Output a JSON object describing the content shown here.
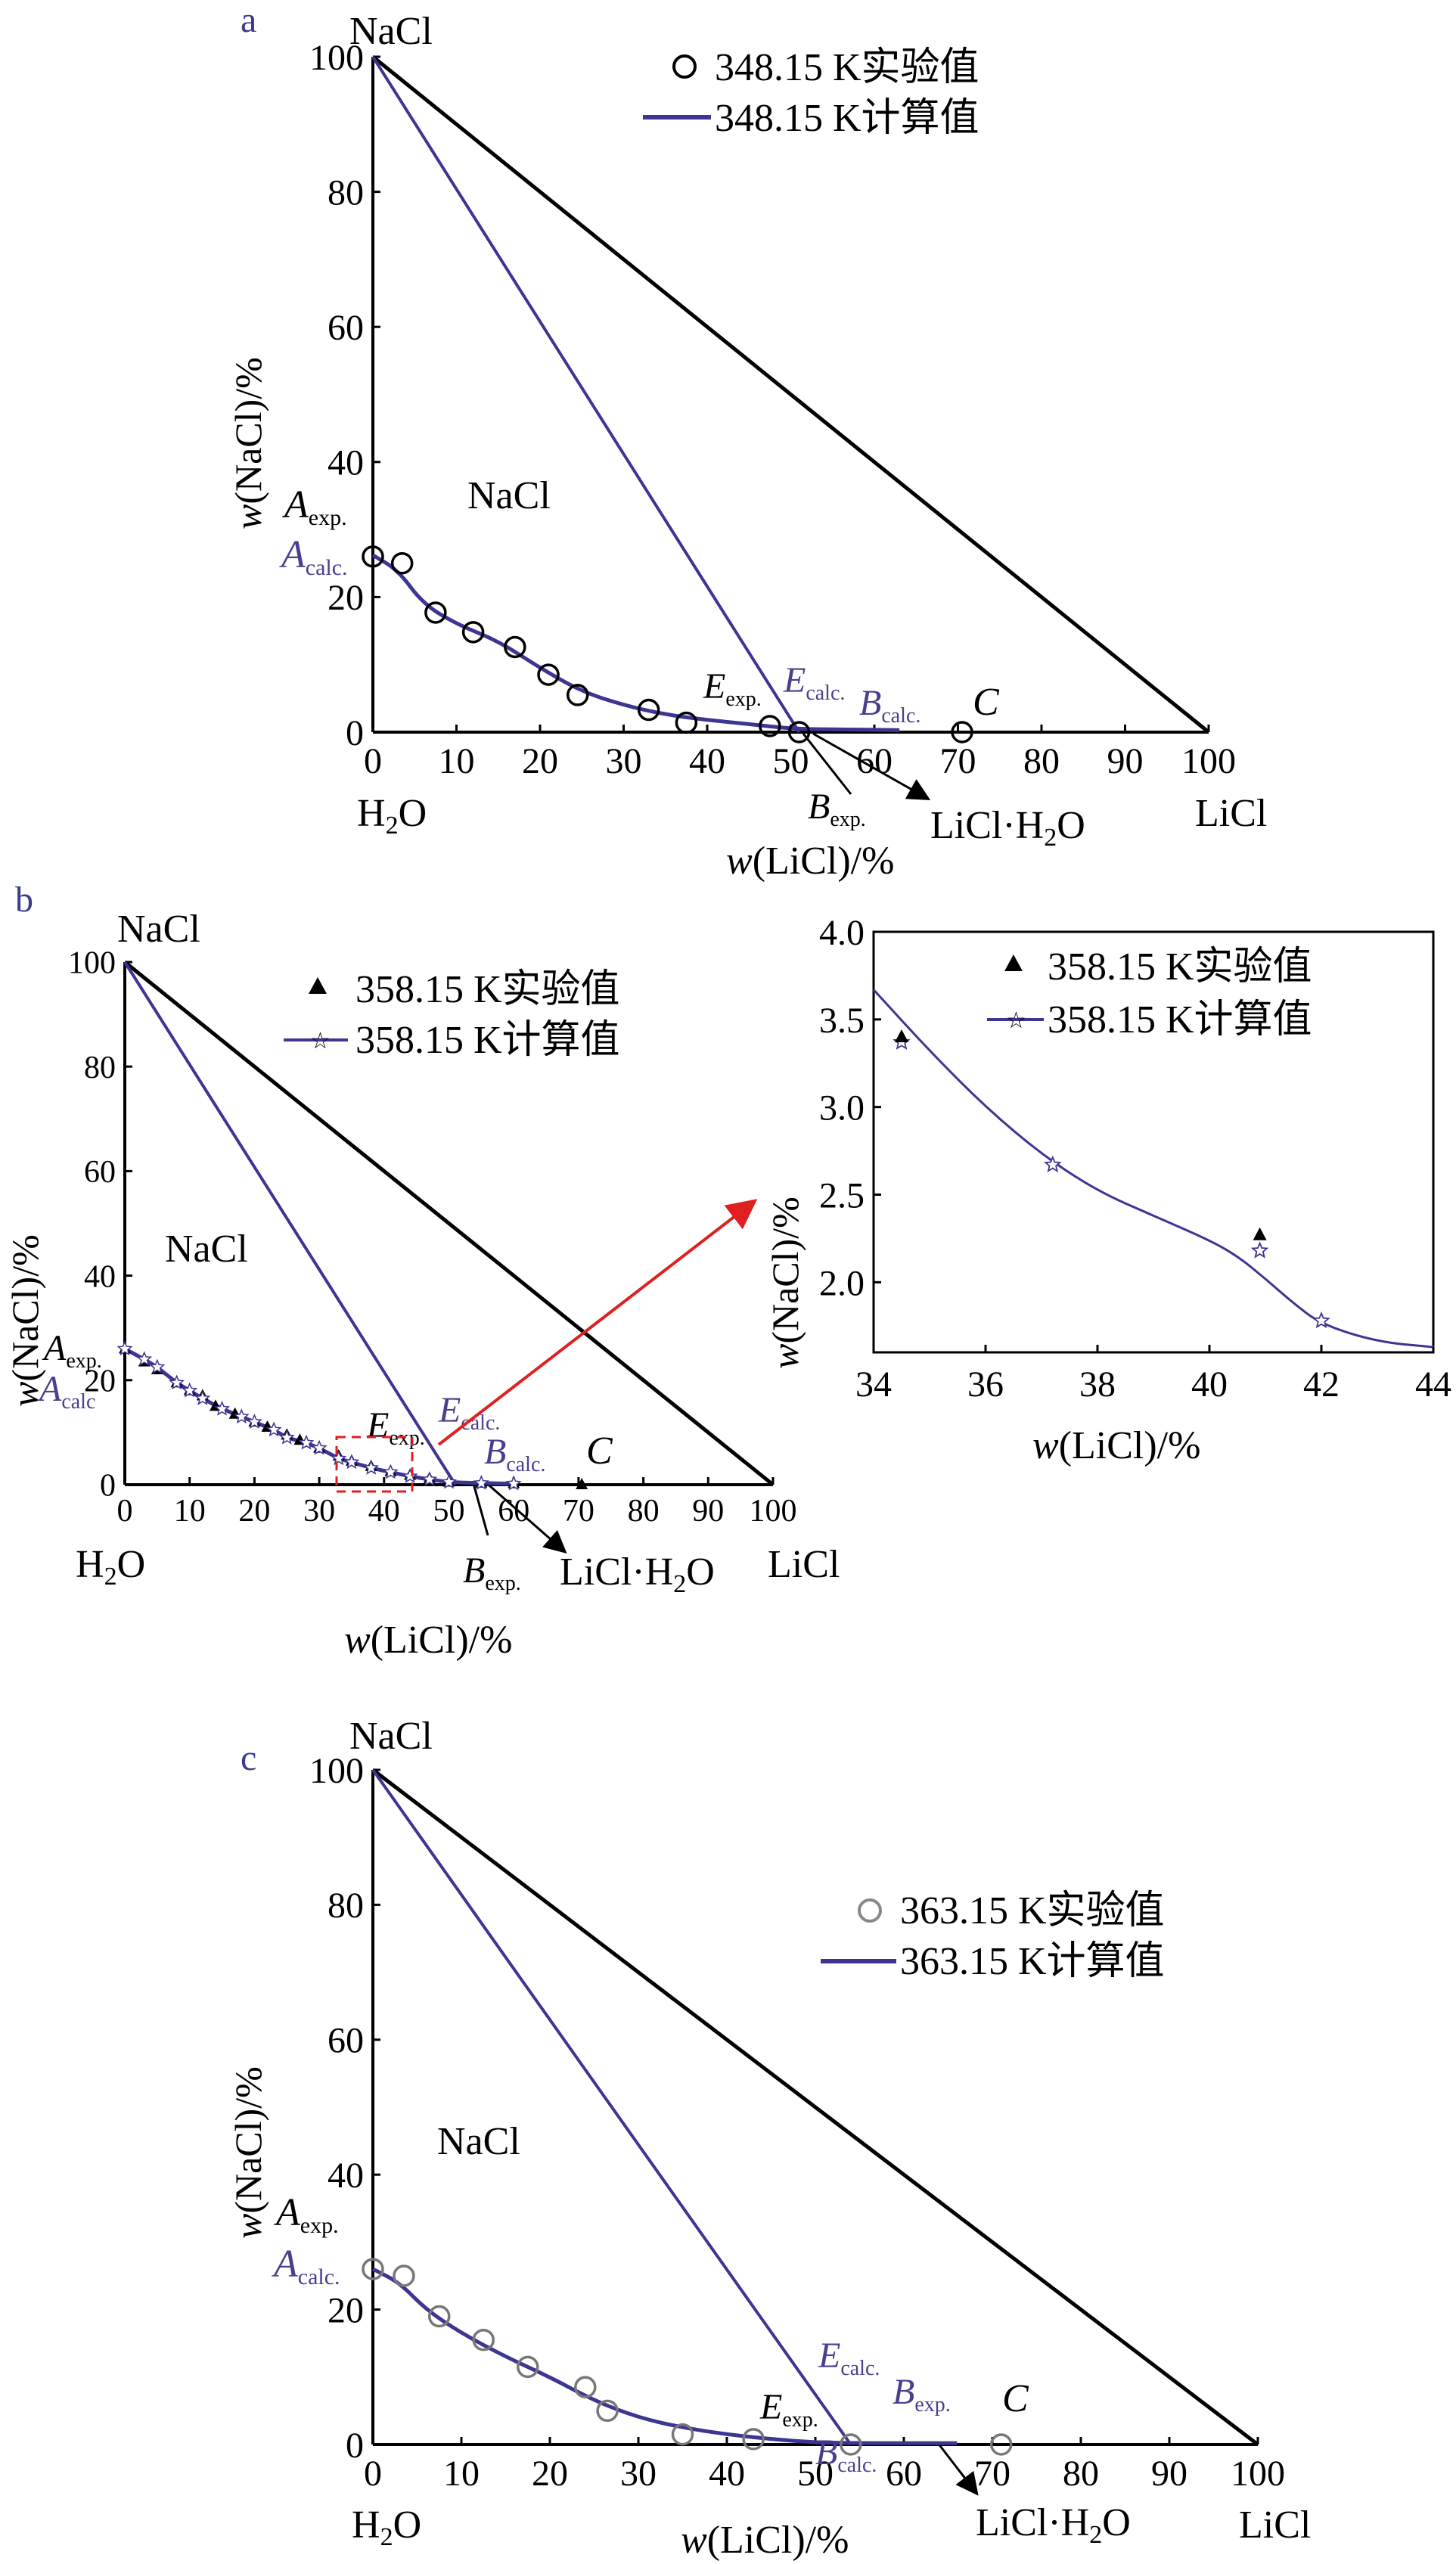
{
  "panels": {
    "a": {
      "letter": "a",
      "vertex_top": "NaCl",
      "vertex_left": "H2O",
      "vertex_right": "LiCl",
      "region_label": "NaCl",
      "ylabel_w": "w",
      "ylabel_rest": "(NaCl)/%",
      "xlabel_w": "w",
      "xlabel_rest": "(LiCl)/%",
      "hydrate_label": "LiCl·H2O",
      "legend": {
        "exp": "348.15 K实验值",
        "calc": "348.15 K计算值"
      },
      "point_labels": [
        "A",
        "exp.",
        "A",
        "calc.",
        "E",
        "exp.",
        "E",
        "calc.",
        "B",
        "calc.",
        "B",
        "exp.",
        "C"
      ]
    },
    "b": {
      "letter": "b",
      "vertex_top": "NaCl",
      "vertex_left": "H2O",
      "vertex_right": "LiCl",
      "region_label": "NaCl",
      "ylabel_w": "w",
      "ylabel_rest": "(NaCl)/%",
      "xlabel_w": "w",
      "xlabel_rest": "(LiCl)/%",
      "hydrate_label": "LiCl·H2O",
      "legend": {
        "exp": "358.15 K实验值",
        "calc": "358.15 K计算值"
      },
      "inset_legend": {
        "exp": "358.15 K实验值",
        "calc": "358.15 K计算值"
      },
      "inset_ylabel_w": "w",
      "inset_ylabel_rest": "(NaCl)/%",
      "inset_xlabel_w": "w",
      "inset_xlabel_rest": "(LiCl)/%"
    },
    "c": {
      "letter": "c",
      "vertex_top": "NaCl",
      "vertex_left": "H2O",
      "vertex_right": "LiCl",
      "region_label": "NaCl",
      "ylabel_w": "w",
      "ylabel_rest": "(NaCl)/%",
      "xlabel_w": "w",
      "xlabel_rest": "(LiCl)/%",
      "hydrate_label": "LiCl·H2O",
      "legend": {
        "exp": "363.15 K实验值",
        "calc": "363.15 K计算值"
      }
    }
  },
  "colors": {
    "calc_line": "#3d3592",
    "exp_marker": "#000000",
    "arrow": "#e02020",
    "inset_box": "#e02020"
  },
  "chart_data": [
    {
      "panel": "a",
      "type": "scatter",
      "title": "",
      "xlabel": "w(LiCl)/%",
      "ylabel": "w(NaCl)/%",
      "xlim": [
        0,
        100
      ],
      "ylim": [
        0,
        100
      ],
      "xticks": [
        0,
        10,
        20,
        30,
        40,
        50,
        60,
        70,
        80,
        90,
        100
      ],
      "yticks": [
        0,
        20,
        40,
        60,
        80,
        100
      ],
      "series": [
        {
          "name": "348.15 K实验值",
          "marker": "open-circle",
          "x": [
            0,
            3.5,
            7.5,
            12,
            17,
            21,
            24.5,
            33,
            37.5,
            47.5,
            51,
            70.5
          ],
          "y": [
            26,
            25,
            17.7,
            14.8,
            12.6,
            8.5,
            5.5,
            3.3,
            1.4,
            0.9,
            0,
            0
          ]
        },
        {
          "name": "348.15 K计算值",
          "marker": "line",
          "x": [
            0,
            3,
            6,
            10,
            15,
            20,
            25,
            30,
            35,
            40,
            45,
            50,
            55,
            60,
            63
          ],
          "y": [
            26.2,
            24,
            19,
            16,
            13.5,
            9.5,
            6,
            4,
            2.6,
            1.8,
            1.2,
            0.5,
            0.4,
            0.35,
            0.3
          ]
        }
      ],
      "annotations": [
        "Aexp.",
        "Acalc.",
        "Eexp.",
        "Ecalc.",
        "Bcalc.",
        "Bexp.",
        "C",
        "LiCl·H2O",
        "NaCl"
      ]
    },
    {
      "panel": "b",
      "type": "scatter",
      "title": "",
      "xlabel": "w(LiCl)/%",
      "ylabel": "w(NaCl)/%",
      "xlim": [
        0,
        100
      ],
      "ylim": [
        0,
        100
      ],
      "xticks": [
        0,
        10,
        20,
        30,
        40,
        50,
        60,
        70,
        80,
        90,
        100
      ],
      "yticks": [
        0,
        20,
        40,
        60,
        80,
        100
      ],
      "series": [
        {
          "name": "358.15 K实验值",
          "marker": "filled-triangle",
          "x": [
            0,
            3,
            5,
            8,
            10,
            12,
            14,
            17,
            20,
            22,
            25,
            27,
            30,
            33,
            35,
            38,
            41,
            44,
            47,
            50,
            55,
            60,
            70.5
          ],
          "y": [
            26,
            23.5,
            22,
            19.5,
            18,
            17,
            15,
            13.5,
            12,
            11,
            9.5,
            8.5,
            7,
            5.5,
            4.5,
            3.5,
            2.5,
            1.8,
            1.2,
            0.5,
            0.3,
            0.2,
            0
          ]
        },
        {
          "name": "358.15 K计算值",
          "marker": "line-star",
          "x": [
            0,
            3,
            5,
            8,
            10,
            12,
            15,
            18,
            20,
            23,
            25,
            28,
            30,
            33,
            35,
            38,
            41,
            44,
            47,
            50,
            55,
            60
          ],
          "y": [
            26,
            24,
            22.5,
            19.5,
            18,
            16.5,
            14.5,
            13,
            12,
            10.5,
            9,
            8,
            7,
            5,
            4.3,
            3.2,
            2.4,
            1.6,
            1,
            0.5,
            0.3,
            0.2
          ]
        }
      ],
      "annotations": [
        "Aexp.",
        "Acalc.",
        "Eexp.",
        "Ecalc.",
        "Bcalc.",
        "Bexp.",
        "C",
        "LiCl·H2O",
        "NaCl"
      ]
    },
    {
      "panel": "b-inset",
      "type": "line",
      "title": "",
      "xlabel": "w(LiCl)/%",
      "ylabel": "w(NaCl)/%",
      "xlim": [
        34,
        44
      ],
      "ylim": [
        1.6,
        4.0
      ],
      "xticks": [
        34,
        36,
        38,
        40,
        42,
        44
      ],
      "yticks": [
        2.0,
        2.5,
        3.0,
        3.5,
        4.0
      ],
      "series": [
        {
          "name": "358.15 K实验值",
          "marker": "filled-triangle",
          "x": [
            34.5,
            40.9
          ],
          "y": [
            3.4,
            2.27
          ]
        },
        {
          "name": "358.15 K计算值",
          "marker": "line-star",
          "x": [
            34,
            35,
            36,
            37,
            38,
            39,
            40,
            40.5,
            41,
            41.5,
            42,
            43,
            44
          ],
          "y": [
            3.67,
            3.32,
            3.0,
            2.73,
            2.52,
            2.38,
            2.24,
            2.15,
            2.02,
            1.88,
            1.76,
            1.66,
            1.63
          ],
          "star_x": [
            34.5,
            37.2,
            40.9,
            42.0
          ],
          "star_y": [
            3.37,
            2.67,
            2.18,
            1.78
          ]
        }
      ]
    },
    {
      "panel": "c",
      "type": "scatter",
      "title": "",
      "xlabel": "w(LiCl)/%",
      "ylabel": "w(NaCl)/%",
      "xlim": [
        0,
        100
      ],
      "ylim": [
        0,
        100
      ],
      "xticks": [
        0,
        10,
        20,
        30,
        40,
        50,
        60,
        70,
        80,
        90,
        100
      ],
      "yticks": [
        0,
        20,
        40,
        60,
        80,
        100
      ],
      "series": [
        {
          "name": "363.15 K实验值",
          "marker": "open-circle-gray",
          "x": [
            0,
            3.5,
            7.5,
            12.5,
            17.5,
            24,
            26.5,
            35,
            43,
            54,
            71
          ],
          "y": [
            26,
            25,
            19,
            15.5,
            11.5,
            8.5,
            5,
            1.5,
            0.8,
            0,
            0
          ]
        },
        {
          "name": "363.15 K计算值",
          "marker": "line",
          "x": [
            0,
            3,
            6,
            10,
            15,
            20,
            25,
            30,
            35,
            40,
            45,
            50,
            55,
            60,
            66
          ],
          "y": [
            26,
            24,
            20,
            16.5,
            13,
            10,
            6.5,
            4,
            2.5,
            1.5,
            0.8,
            0.3,
            0.2,
            0.2,
            0.2
          ]
        }
      ],
      "annotations": [
        "Aexp.",
        "Acalc.",
        "Eexp.",
        "Ecalc.",
        "Bexp.",
        "Bcalc.",
        "C",
        "LiCl·H2O",
        "NaCl"
      ]
    }
  ]
}
